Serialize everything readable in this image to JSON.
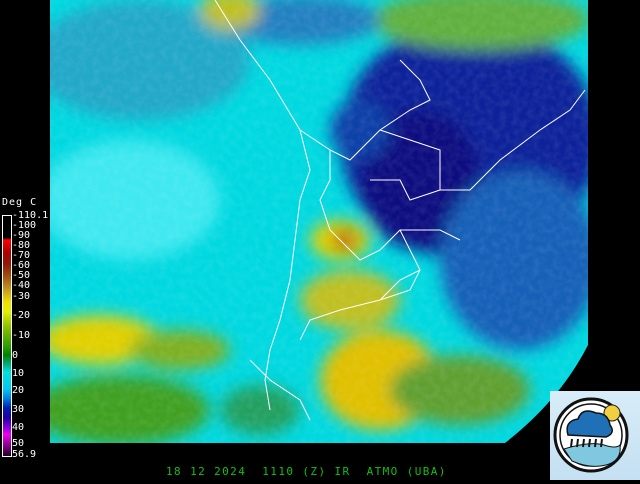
{
  "image": {
    "type": "infrared satellite image",
    "region": "South America (southern cone)",
    "colors": {
      "background": "#000000",
      "cold_cloud_yellow": "#f0e000",
      "cyan": "#00e0e0",
      "deep_blue": "#101890",
      "green": "#30a000",
      "borders": "#ffffff",
      "footer_text": "#10c010"
    }
  },
  "legend": {
    "title": "Deg C",
    "ticks": [
      "-110.1",
      "-100",
      "-90",
      "-80",
      "-70",
      "-60",
      "-50",
      "-40",
      "-30",
      "-20",
      "-10",
      "0",
      "10",
      "20",
      "30",
      "40",
      "50",
      "56.9"
    ]
  },
  "footer": {
    "date": "18 12 2024",
    "time": "1110",
    "zone": "(Z)",
    "channel": "IR",
    "source": "ATMO (UBA)"
  },
  "logo": {
    "icon": "weather-cloud-rain-sun-sea-logo"
  }
}
